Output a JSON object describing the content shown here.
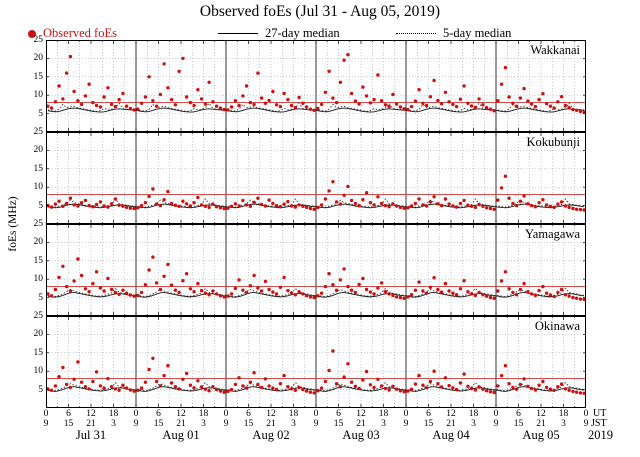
{
  "title": "Observed foEs (Jul 31 - Aug 05, 2019)",
  "legend": {
    "observed": "Observed foEs",
    "median27": "27-day median",
    "median5": "5-day median"
  },
  "y_axis_label": "foEs (MHz)",
  "axis": {
    "ut": "UT",
    "jst": "JST",
    "year": "2019"
  },
  "colors": {
    "observed": "#cc1111",
    "median27": "#1a1a1a",
    "median5": "#333333",
    "red_line": "#cc3333",
    "grid": "#9a9a9a",
    "frame": "#000000"
  },
  "chart_data": {
    "type": "scatter",
    "title": "Observed foEs (Jul 31 - Aug 05, 2019)",
    "ylabel": "foEs (MHz)",
    "ylim": [
      0,
      25
    ],
    "y_ticks": [
      0,
      5,
      10,
      15,
      20,
      25
    ],
    "x_unit": "hours since 2019-07-31 00:00 UT",
    "x_range_hours": [
      0,
      144
    ],
    "x_tick_step_hours": 6,
    "x_gridline_step_hours": 3,
    "ut_tick_labels": [
      "0",
      "6",
      "12",
      "18"
    ],
    "jst_tick_labels": [
      "9",
      "15",
      "21",
      "3"
    ],
    "end_tick_ut": "0",
    "end_tick_jst": "9",
    "day_labels": [
      "Jul 31",
      "Aug 01",
      "Aug 02",
      "Aug 03",
      "Aug 04",
      "Aug 05"
    ],
    "red_line_mhz": 8,
    "series_legend": [
      "Observed foEs",
      "27-day median",
      "5-day median"
    ],
    "stations": [
      {
        "name": "Wakkanai",
        "observed_hourly_mhz": [
          7.0,
          6.5,
          8.2,
          12.5,
          9.0,
          16.0,
          20.5,
          11.0,
          8.5,
          7.5,
          9.8,
          13.0,
          8.0,
          7.2,
          6.8,
          9.5,
          12.0,
          7.5,
          6.9,
          8.8,
          10.5,
          7.0,
          6.4,
          6.0,
          6.2,
          7.8,
          9.5,
          15.0,
          8.5,
          7.0,
          10.2,
          18.5,
          12.0,
          8.8,
          7.4,
          16.5,
          20.0,
          9.5,
          8.0,
          7.2,
          11.5,
          9.0,
          7.6,
          13.5,
          8.2,
          7.0,
          6.5,
          6.1,
          6.0,
          6.8,
          8.5,
          7.2,
          9.8,
          12.5,
          8.0,
          7.5,
          16.0,
          9.2,
          7.8,
          8.6,
          11.0,
          7.4,
          6.9,
          10.5,
          8.8,
          7.2,
          6.6,
          9.4,
          7.8,
          6.8,
          6.2,
          5.9,
          6.4,
          7.5,
          10.8,
          16.5,
          9.2,
          8.0,
          13.5,
          19.5,
          21.0,
          10.5,
          8.4,
          7.6,
          12.2,
          9.8,
          7.9,
          8.8,
          15.5,
          8.5,
          7.4,
          6.9,
          10.2,
          7.6,
          6.8,
          6.3,
          6.1,
          6.9,
          8.4,
          11.5,
          7.8,
          7.2,
          9.6,
          14.0,
          8.6,
          7.7,
          10.8,
          8.2,
          7.5,
          6.9,
          8.9,
          12.5,
          7.8,
          7.1,
          6.7,
          9.0,
          7.4,
          6.6,
          6.2,
          5.8,
          8.5,
          13.0,
          17.5,
          9.5,
          7.8,
          7.0,
          9.2,
          11.8,
          8.4,
          7.6,
          6.9,
          8.8,
          10.4,
          7.7,
          7.0,
          6.5,
          8.2,
          9.6,
          7.2,
          6.6,
          6.1,
          5.9,
          5.6,
          5.4
        ],
        "median27_diurnal_mhz": [
          5.8,
          5.6,
          5.5,
          5.6,
          5.9,
          6.2,
          6.4,
          6.5,
          6.4,
          6.2,
          6.0,
          5.8,
          5.6,
          5.5,
          5.4,
          5.5,
          5.7,
          6.0,
          6.2,
          6.3,
          6.2,
          6.1,
          6.0,
          5.9
        ],
        "median5_diurnal_mhz": [
          6.0,
          5.8,
          5.7,
          6.2,
          7.5,
          6.6,
          6.8,
          7.0,
          6.6,
          6.4,
          6.2,
          6.0,
          5.8,
          5.6,
          5.8,
          6.4,
          6.0,
          6.2,
          6.6,
          7.8,
          6.4,
          6.2,
          6.1,
          6.0
        ]
      },
      {
        "name": "Kokubunji",
        "observed_hourly_mhz": [
          5.0,
          4.6,
          5.4,
          6.2,
          4.8,
          5.6,
          7.0,
          5.2,
          4.9,
          5.8,
          6.4,
          5.0,
          4.7,
          5.3,
          6.0,
          4.9,
          4.6,
          5.5,
          6.8,
          5.1,
          4.8,
          4.5,
          4.3,
          4.2,
          4.4,
          5.0,
          5.8,
          7.5,
          9.5,
          5.4,
          5.0,
          6.6,
          8.8,
          5.6,
          5.1,
          4.8,
          6.2,
          5.5,
          4.9,
          5.8,
          7.2,
          5.2,
          4.8,
          4.5,
          5.4,
          4.7,
          4.4,
          4.2,
          4.3,
          4.8,
          5.5,
          4.9,
          6.4,
          5.2,
          4.8,
          5.9,
          7.0,
          5.3,
          4.9,
          6.5,
          5.6,
          5.0,
          4.7,
          5.4,
          6.1,
          4.9,
          4.6,
          5.2,
          4.8,
          4.5,
          4.2,
          4.0,
          4.5,
          5.2,
          6.8,
          9.0,
          11.5,
          6.0,
          5.4,
          7.8,
          10.2,
          6.4,
          5.6,
          5.0,
          6.6,
          8.5,
          5.8,
          5.2,
          7.4,
          5.6,
          5.0,
          4.7,
          5.5,
          4.9,
          4.5,
          4.3,
          4.4,
          4.9,
          5.6,
          6.8,
          5.2,
          4.9,
          6.0,
          7.4,
          5.5,
          5.0,
          6.8,
          5.4,
          4.9,
          4.6,
          5.6,
          6.4,
          5.1,
          4.8,
          4.5,
          5.3,
          4.8,
          4.4,
          4.2,
          4.0,
          6.5,
          9.8,
          13.0,
          7.0,
          5.6,
          5.0,
          6.2,
          7.6,
          5.5,
          5.0,
          4.7,
          5.8,
          6.6,
          5.2,
          4.8,
          4.5,
          5.4,
          6.0,
          4.9,
          4.5,
          4.2,
          4.0,
          3.9,
          3.8
        ],
        "median27_diurnal_mhz": [
          4.6,
          4.5,
          4.4,
          4.5,
          4.8,
          5.1,
          5.3,
          5.4,
          5.3,
          5.1,
          4.9,
          4.7,
          4.6,
          4.5,
          4.4,
          4.5,
          4.7,
          4.9,
          5.1,
          5.2,
          5.1,
          5.0,
          4.8,
          4.7
        ],
        "median5_diurnal_mhz": [
          4.8,
          4.7,
          4.6,
          4.8,
          5.2,
          5.6,
          6.5,
          5.8,
          5.6,
          5.3,
          5.1,
          4.9,
          4.8,
          4.7,
          4.6,
          4.8,
          5.0,
          5.3,
          6.8,
          5.5,
          5.3,
          5.1,
          5.0,
          4.8
        ]
      },
      {
        "name": "Yamagawa",
        "observed_hourly_mhz": [
          6.0,
          5.5,
          7.2,
          10.5,
          13.5,
          8.0,
          6.8,
          9.5,
          15.5,
          11.0,
          7.4,
          6.6,
          8.8,
          12.0,
          7.6,
          6.8,
          10.2,
          7.2,
          6.4,
          5.9,
          7.0,
          6.2,
          5.7,
          5.4,
          5.6,
          6.4,
          8.5,
          12.5,
          16.0,
          9.0,
          7.2,
          10.8,
          14.0,
          8.4,
          7.0,
          6.4,
          9.6,
          11.5,
          7.4,
          6.6,
          8.8,
          6.9,
          6.2,
          5.8,
          6.8,
          6.0,
          5.5,
          5.2,
          5.4,
          6.0,
          7.5,
          9.8,
          7.0,
          6.4,
          8.2,
          11.0,
          7.6,
          6.8,
          9.4,
          7.2,
          6.5,
          6.0,
          7.8,
          10.5,
          6.9,
          6.3,
          5.8,
          6.6,
          6.0,
          5.5,
          5.2,
          5.0,
          5.5,
          6.2,
          8.0,
          11.5,
          8.5,
          7.0,
          9.8,
          12.8,
          8.0,
          7.0,
          6.4,
          8.6,
          10.2,
          7.2,
          6.5,
          6.0,
          7.6,
          9.0,
          6.6,
          6.0,
          5.6,
          5.2,
          5.0,
          4.8,
          5.2,
          5.8,
          7.0,
          9.2,
          6.8,
          6.2,
          7.8,
          10.4,
          7.2,
          6.5,
          8.8,
          6.8,
          6.2,
          5.8,
          7.4,
          9.6,
          6.6,
          6.0,
          5.6,
          6.4,
          5.8,
          5.4,
          5.0,
          4.8,
          6.8,
          9.5,
          12.0,
          7.4,
          6.4,
          5.8,
          7.2,
          8.8,
          6.6,
          6.0,
          5.6,
          6.9,
          8.0,
          6.2,
          5.7,
          5.3,
          6.4,
          7.2,
          5.8,
          5.4,
          5.0,
          4.8,
          4.6,
          4.5
        ],
        "median27_diurnal_mhz": [
          5.4,
          5.2,
          5.1,
          5.3,
          5.6,
          6.0,
          6.3,
          6.4,
          6.2,
          6.0,
          5.8,
          5.6,
          5.4,
          5.3,
          5.2,
          5.3,
          5.5,
          5.8,
          6.0,
          6.1,
          6.0,
          5.8,
          5.6,
          5.5
        ],
        "median5_diurnal_mhz": [
          5.6,
          5.4,
          5.3,
          5.6,
          6.0,
          6.6,
          7.2,
          6.8,
          6.5,
          6.2,
          6.0,
          5.8,
          5.6,
          5.4,
          5.4,
          5.6,
          5.9,
          6.3,
          7.5,
          6.4,
          6.2,
          6.0,
          5.8,
          5.6
        ]
      },
      {
        "name": "Okinawa",
        "observed_hourly_mhz": [
          5.2,
          4.8,
          6.0,
          8.5,
          11.0,
          6.4,
          5.6,
          7.8,
          12.5,
          7.0,
          5.8,
          5.2,
          7.2,
          9.8,
          6.0,
          5.4,
          8.0,
          5.8,
          5.2,
          4.8,
          6.2,
          5.4,
          4.9,
          4.6,
          4.8,
          5.4,
          7.0,
          10.5,
          13.5,
          7.2,
          6.0,
          8.8,
          11.5,
          6.8,
          5.8,
          5.2,
          7.8,
          9.4,
          6.2,
          5.5,
          7.4,
          5.7,
          5.1,
          4.7,
          5.8,
          5.0,
          4.6,
          4.3,
          4.5,
          5.0,
          6.4,
          8.2,
          6.0,
          5.4,
          7.0,
          9.6,
          6.4,
          5.6,
          7.9,
          6.0,
          5.4,
          5.0,
          6.6,
          8.8,
          5.8,
          5.2,
          4.8,
          5.6,
          5.0,
          4.6,
          4.3,
          4.1,
          4.7,
          5.4,
          7.2,
          10.2,
          15.5,
          6.6,
          5.8,
          8.4,
          12.0,
          7.0,
          5.9,
          5.3,
          7.6,
          9.9,
          6.3,
          5.6,
          7.8,
          6.0,
          5.3,
          4.9,
          5.9,
          5.1,
          4.7,
          4.4,
          4.6,
          5.1,
          6.5,
          8.8,
          6.2,
          5.5,
          7.2,
          10.0,
          6.6,
          5.7,
          8.2,
          6.1,
          5.5,
          5.0,
          6.8,
          9.2,
          5.9,
          5.3,
          4.9,
          5.7,
          5.1,
          4.7,
          4.4,
          4.2,
          6.0,
          8.8,
          11.5,
          6.6,
          5.6,
          5.1,
          6.4,
          7.9,
          5.9,
          5.3,
          4.9,
          6.2,
          7.2,
          5.6,
          5.1,
          4.8,
          5.8,
          6.5,
          5.2,
          4.8,
          4.5,
          4.3,
          4.1,
          4.0
        ],
        "median27_diurnal_mhz": [
          4.8,
          4.6,
          4.5,
          4.7,
          5.0,
          5.4,
          5.7,
          5.8,
          5.6,
          5.4,
          5.2,
          5.0,
          4.8,
          4.7,
          4.6,
          4.7,
          4.9,
          5.2,
          5.4,
          5.5,
          5.4,
          5.2,
          5.0,
          4.9
        ],
        "median5_diurnal_mhz": [
          5.0,
          4.8,
          4.7,
          5.0,
          5.4,
          6.0,
          6.6,
          6.2,
          5.9,
          5.6,
          5.4,
          5.2,
          5.0,
          4.8,
          4.8,
          5.0,
          5.3,
          5.7,
          6.9,
          5.8,
          5.6,
          5.4,
          5.2,
          5.0
        ]
      }
    ]
  }
}
